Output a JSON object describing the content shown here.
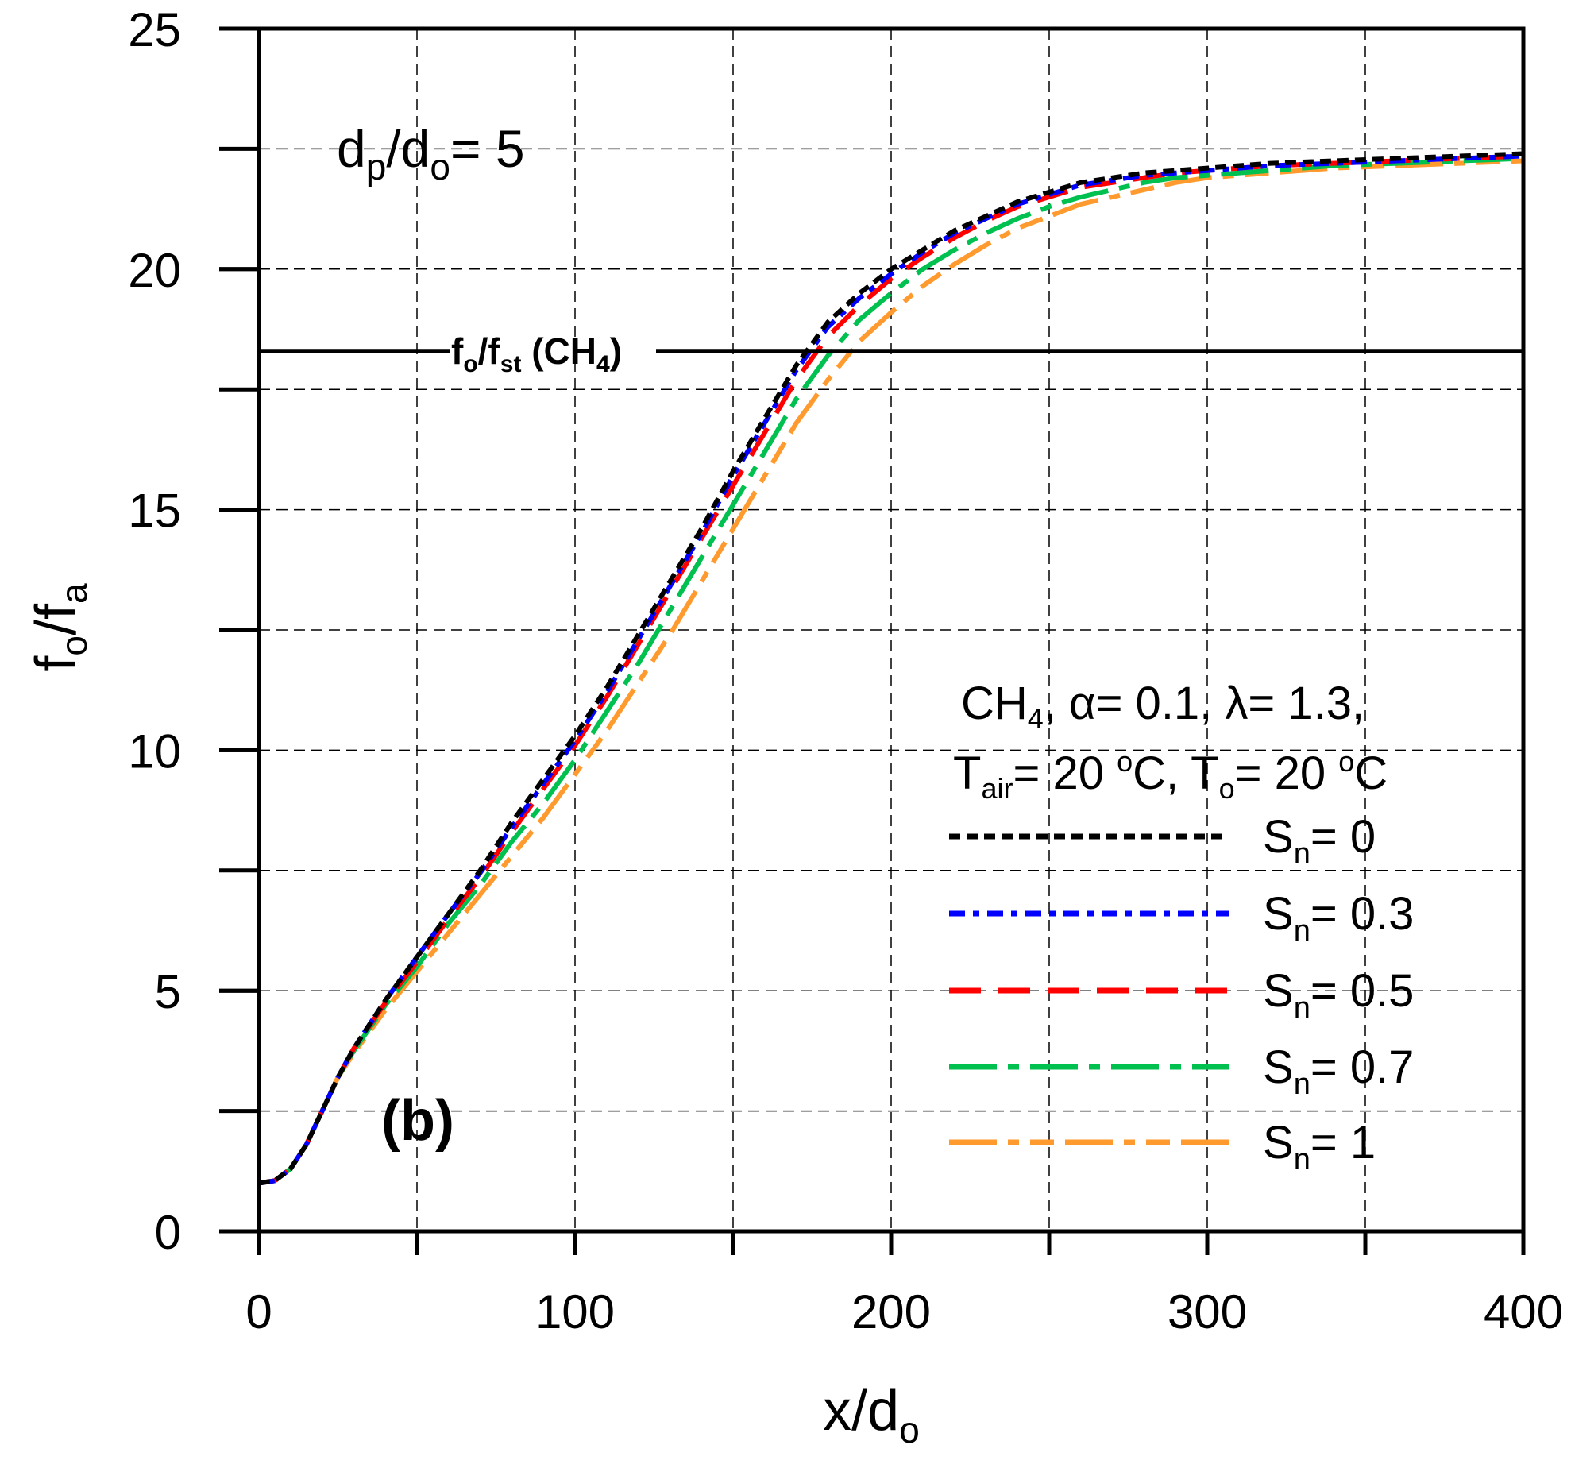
{
  "chart_data": {
    "type": "line",
    "xlabel": {
      "main": "x/d",
      "sub": "o"
    },
    "ylabel": {
      "f1": "f",
      "s1": "o",
      "slash": "/",
      "f2": "f",
      "s2": "a"
    },
    "xlim": [
      0,
      400
    ],
    "ylim": [
      0,
      25
    ],
    "x_ticks": [
      0,
      100,
      200,
      300,
      400
    ],
    "x_tick_labels": [
      "0",
      "100",
      "200",
      "300",
      "400"
    ],
    "y_ticks": [
      0,
      5,
      10,
      15,
      20,
      25
    ],
    "y_tick_labels": [
      "0",
      "5",
      "10",
      "15",
      "20",
      "25"
    ],
    "x_grid": [
      50,
      100,
      150,
      200,
      250,
      300,
      350
    ],
    "y_grid": [
      2.5,
      5,
      7.5,
      10,
      12.5,
      15,
      17.5,
      20,
      22.5
    ],
    "grid": true,
    "title_annotation": {
      "d": "d",
      "p": "p",
      "slash": "/d",
      "o": "o",
      "rest": "= 5"
    },
    "panel_label": "(b)",
    "reference_line": {
      "y": 18.3,
      "label": {
        "f1": "f",
        "s1": "o",
        "slash": "/f",
        "s2": "st",
        "mid": " (CH",
        "s3": "4",
        "end": ")"
      }
    },
    "conditions": {
      "line1": {
        "a": "CH",
        "a_sub": "4",
        "b": ", α= 0.1, λ= 1.3,"
      },
      "line2": {
        "a": "T",
        "a_sub": "air",
        "b": "= 20 ",
        "b_sup": "o",
        "c": "C, T",
        "c_sub": "o",
        "d": "= 20 ",
        "d_sup": "o",
        "e": "C"
      }
    },
    "series": [
      {
        "name": "Sn = 0",
        "label_main": "S",
        "label_sub": "n",
        "label_rest": "= 0",
        "color": "#000000",
        "dash": "14 8",
        "x": [
          0,
          5,
          10,
          15,
          20,
          25,
          30,
          40,
          50,
          60,
          70,
          80,
          90,
          100,
          110,
          120,
          130,
          140,
          150,
          160,
          170,
          180,
          190,
          200,
          210,
          220,
          230,
          240,
          250,
          260,
          270,
          280,
          290,
          300,
          320,
          340,
          360,
          380,
          400
        ],
        "y": [
          1.0,
          1.05,
          1.3,
          1.8,
          2.5,
          3.2,
          3.8,
          4.8,
          5.7,
          6.6,
          7.5,
          8.5,
          9.4,
          10.3,
          11.3,
          12.4,
          13.5,
          14.6,
          15.8,
          16.9,
          18.0,
          18.9,
          19.5,
          20.0,
          20.4,
          20.8,
          21.1,
          21.4,
          21.6,
          21.8,
          21.9,
          22.0,
          22.05,
          22.1,
          22.2,
          22.25,
          22.3,
          22.35,
          22.4
        ]
      },
      {
        "name": "Sn = 0.3",
        "label_main": "S",
        "label_sub": "n",
        "label_rest": "= 0.3",
        "color": "#0000ff",
        "dash": "20 10 8 10",
        "x": [
          0,
          5,
          10,
          15,
          20,
          25,
          30,
          40,
          50,
          60,
          70,
          80,
          90,
          100,
          110,
          120,
          130,
          140,
          150,
          160,
          170,
          180,
          190,
          200,
          210,
          220,
          230,
          240,
          250,
          260,
          270,
          280,
          290,
          300,
          320,
          340,
          360,
          380,
          400
        ],
        "y": [
          1.0,
          1.05,
          1.3,
          1.8,
          2.5,
          3.2,
          3.8,
          4.8,
          5.7,
          6.6,
          7.45,
          8.4,
          9.3,
          10.2,
          11.2,
          12.3,
          13.4,
          14.5,
          15.7,
          16.8,
          17.9,
          18.8,
          19.4,
          19.9,
          20.35,
          20.75,
          21.05,
          21.35,
          21.55,
          21.75,
          21.85,
          21.95,
          22.0,
          22.05,
          22.15,
          22.2,
          22.25,
          22.3,
          22.35
        ]
      },
      {
        "name": "Sn = 0.5",
        "label_main": "S",
        "label_sub": "n",
        "label_rest": "= 0.5",
        "color": "#ff0000",
        "dash": "40 22",
        "x": [
          0,
          5,
          10,
          15,
          20,
          25,
          30,
          40,
          50,
          60,
          70,
          80,
          90,
          100,
          110,
          120,
          130,
          140,
          150,
          160,
          170,
          180,
          190,
          200,
          210,
          220,
          230,
          240,
          250,
          260,
          270,
          280,
          290,
          300,
          320,
          340,
          360,
          380,
          400
        ],
        "y": [
          1.0,
          1.05,
          1.3,
          1.8,
          2.5,
          3.2,
          3.8,
          4.75,
          5.6,
          6.5,
          7.35,
          8.3,
          9.2,
          10.1,
          11.1,
          12.2,
          13.3,
          14.4,
          15.5,
          16.6,
          17.7,
          18.6,
          19.25,
          19.8,
          20.25,
          20.65,
          21.0,
          21.3,
          21.5,
          21.7,
          21.8,
          21.9,
          22.0,
          22.05,
          22.15,
          22.2,
          22.25,
          22.3,
          22.35
        ]
      },
      {
        "name": "Sn = 0.7",
        "label_main": "S",
        "label_sub": "n",
        "label_rest": "= 0.7",
        "color": "#00c050",
        "dash": "60 14 14 14",
        "x": [
          0,
          5,
          10,
          15,
          20,
          25,
          30,
          40,
          50,
          60,
          70,
          80,
          90,
          100,
          110,
          120,
          130,
          140,
          150,
          160,
          170,
          180,
          190,
          200,
          210,
          220,
          230,
          240,
          250,
          260,
          270,
          280,
          290,
          300,
          320,
          340,
          360,
          380,
          400
        ],
        "y": [
          1.0,
          1.05,
          1.3,
          1.8,
          2.5,
          3.2,
          3.75,
          4.7,
          5.5,
          6.4,
          7.2,
          8.1,
          8.9,
          9.8,
          10.8,
          11.8,
          12.9,
          14.0,
          15.1,
          16.2,
          17.3,
          18.2,
          18.95,
          19.5,
          20.0,
          20.4,
          20.75,
          21.05,
          21.3,
          21.5,
          21.65,
          21.8,
          21.9,
          21.95,
          22.05,
          22.15,
          22.2,
          22.25,
          22.3
        ]
      },
      {
        "name": "Sn = 1",
        "label_main": "S",
        "label_sub": "n",
        "label_rest": "= 1",
        "color": "#ff9a2e",
        "dash": "60 14 14 14 30 14",
        "x": [
          0,
          5,
          10,
          15,
          20,
          25,
          30,
          40,
          50,
          60,
          70,
          80,
          90,
          100,
          110,
          120,
          130,
          140,
          150,
          160,
          170,
          180,
          190,
          200,
          210,
          220,
          230,
          240,
          250,
          260,
          270,
          280,
          290,
          300,
          320,
          340,
          360,
          380,
          400
        ],
        "y": [
          1.0,
          1.05,
          1.3,
          1.8,
          2.5,
          3.2,
          3.7,
          4.6,
          5.4,
          6.2,
          7.0,
          7.8,
          8.6,
          9.5,
          10.4,
          11.4,
          12.4,
          13.5,
          14.6,
          15.7,
          16.8,
          17.7,
          18.5,
          19.1,
          19.65,
          20.1,
          20.5,
          20.85,
          21.1,
          21.35,
          21.5,
          21.65,
          21.8,
          21.9,
          22.0,
          22.1,
          22.15,
          22.2,
          22.25
        ]
      }
    ]
  }
}
